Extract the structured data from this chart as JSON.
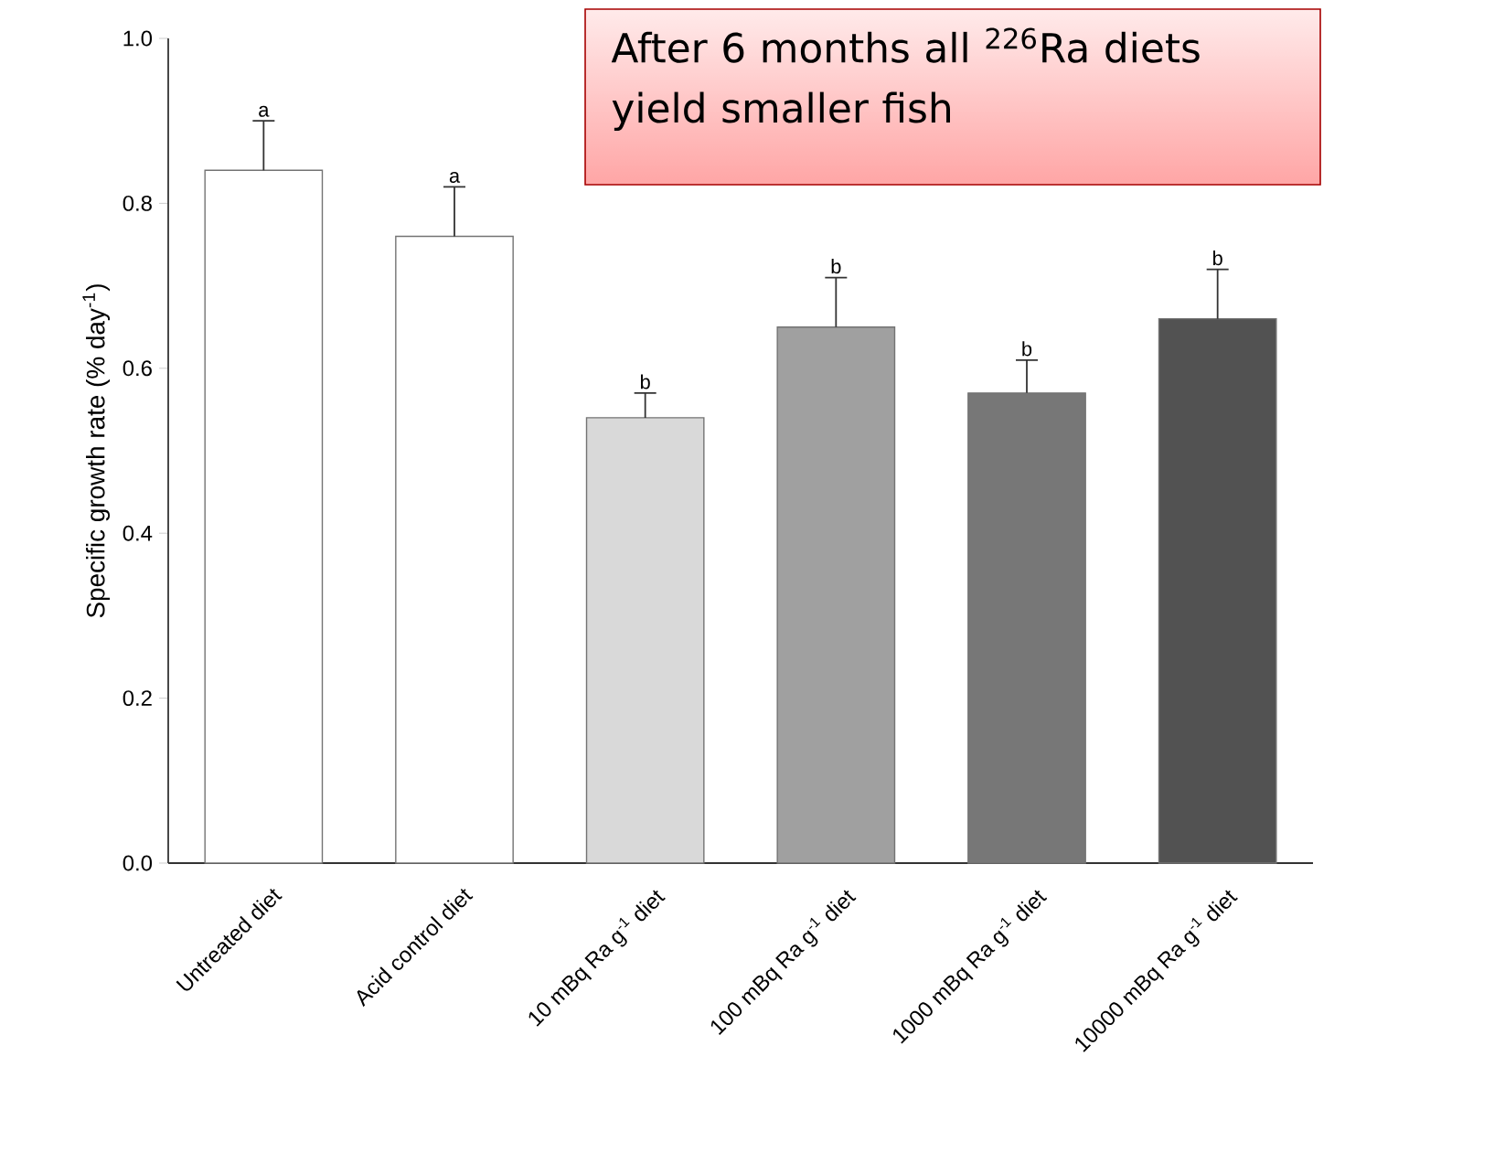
{
  "chart_data": {
    "type": "bar",
    "ylabel": "Specific growth rate (% day$^{-1}$)",
    "categories": [
      "Untreated diet",
      "Acid control diet",
      "10 mBq Ra g$^{-1}$ diet",
      "100 mBq Ra g$^{-1}$ diet",
      "1000 mBq Ra g$^{-1}$ diet",
      "10000 mBq Ra g$^{-1}$ diet"
    ],
    "values": [
      0.84,
      0.76,
      0.54,
      0.65,
      0.57,
      0.66
    ],
    "errors": [
      [
        0.84,
        0.9
      ],
      [
        0.76,
        0.82
      ],
      [
        0.54,
        0.57
      ],
      [
        0.65,
        0.71
      ],
      [
        0.57,
        0.61
      ],
      [
        0.66,
        0.72
      ]
    ],
    "colors": [
      "#ffffff",
      "#ffffff",
      "#d9d9d9",
      "#a0a0a0",
      "#777777",
      "#525252"
    ],
    "ylim": [
      0,
      1
    ],
    "yticks": [
      {
        "value": 0,
        "label": "0.0"
      },
      {
        "value": 0.2,
        "label": "0.2"
      },
      {
        "value": 0.4,
        "label": "0.4"
      },
      {
        "value": 0.6,
        "label": "0.6"
      },
      {
        "value": 0.8,
        "label": "0.8"
      },
      {
        "value": 1,
        "label": "1.0"
      }
    ],
    "grid": false,
    "annotations": [
      "a",
      "a",
      "b",
      "b",
      "b",
      "b",
      "After 6 months all $^{226}$Ra diets yield smaller fish"
    ]
  }
}
